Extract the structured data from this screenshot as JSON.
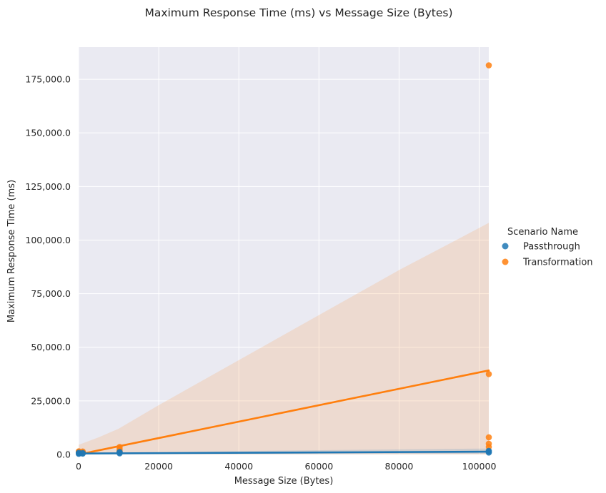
{
  "chart_data": {
    "type": "scatter",
    "title": "Maximum Response Time (ms) vs Message Size (Bytes)",
    "xlabel": "Message Size (Bytes)",
    "ylabel": "Maximum Response Time (ms)",
    "xlim": [
      0,
      102400
    ],
    "ylim": [
      0,
      190000
    ],
    "x_ticks": [
      0,
      20000,
      40000,
      60000,
      80000,
      100000
    ],
    "x_tick_labels": [
      "0",
      "20000",
      "40000",
      "60000",
      "80000",
      "100000"
    ],
    "y_ticks": [
      0,
      25000,
      50000,
      75000,
      100000,
      125000,
      150000,
      175000
    ],
    "y_tick_labels": [
      "0.0",
      "25,000.0",
      "50,000.0",
      "75,000.0",
      "100,000.0",
      "125,000.0",
      "150,000.0",
      "175,000.0"
    ],
    "grid": true,
    "legend": {
      "title": "Scenario Name",
      "placement": "right"
    },
    "series": [
      {
        "name": "Passthrough",
        "color": "#1f77b4",
        "points": [
          [
            50,
            300
          ],
          [
            50,
            500
          ],
          [
            50,
            800
          ],
          [
            1024,
            400
          ],
          [
            1024,
            700
          ],
          [
            10240,
            500
          ],
          [
            10240,
            900
          ],
          [
            10240,
            1200
          ],
          [
            102400,
            900
          ],
          [
            102400,
            1300
          ],
          [
            102400,
            1700
          ]
        ],
        "fit_line": [
          [
            0,
            450
          ],
          [
            102400,
            1300
          ]
        ],
        "ci_band": {
          "x": [
            0,
            102400
          ],
          "lower": [
            200,
            300
          ],
          "upper": [
            800,
            2800
          ]
        }
      },
      {
        "name": "Transformation",
        "color": "#ff7f0e",
        "points": [
          [
            50,
            800
          ],
          [
            50,
            1200
          ],
          [
            50,
            1500
          ],
          [
            1024,
            1000
          ],
          [
            1024,
            1400
          ],
          [
            10240,
            1500
          ],
          [
            10240,
            2500
          ],
          [
            10240,
            3500
          ],
          [
            102400,
            3500
          ],
          [
            102400,
            5000
          ],
          [
            102400,
            8000
          ],
          [
            102400,
            37500
          ],
          [
            102400,
            181500
          ]
        ],
        "fit_line": [
          [
            0,
            -200
          ],
          [
            102400,
            39200
          ]
        ],
        "ci_band": {
          "x": [
            0,
            5000,
            10000,
            20000,
            40000,
            60000,
            80000,
            102400
          ],
          "lower": [
            -6000,
            -4000,
            -3000,
            -4000,
            -7000,
            -10000,
            -13000,
            -16000
          ],
          "upper": [
            4500,
            8000,
            12000,
            23000,
            44000,
            65000,
            86000,
            108000
          ]
        }
      }
    ]
  }
}
